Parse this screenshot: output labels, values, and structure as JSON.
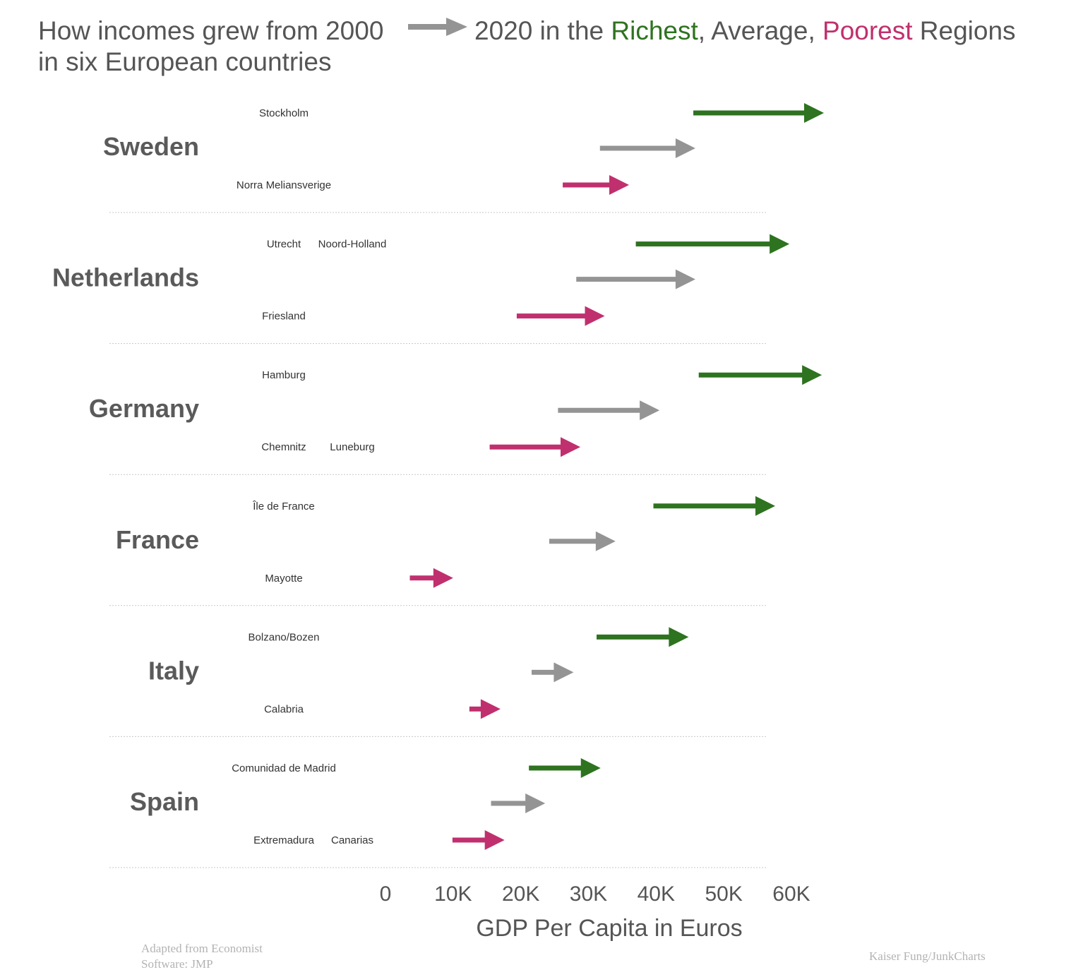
{
  "title": {
    "part1": "How incomes grew from 2000",
    "part2": "2020 in the ",
    "richest": "Richest",
    "sep": ", Average, ",
    "poorest": "Poorest",
    "part3": " Regions",
    "line2": "in six European countries"
  },
  "credits": {
    "source_line1": "Adapted from Economist",
    "source_line2": "Software: JMP",
    "author": "Kaiser Fung/JunkCharts"
  },
  "colors": {
    "richest": "#2e7320",
    "average": "#949494",
    "poorest": "#c0306e"
  },
  "chart_data": {
    "type": "arrow-range",
    "xlabel": "GDP Per Capita in Euros",
    "xlim": [
      0,
      60000
    ],
    "ticks": [
      {
        "value": 0,
        "label": "0"
      },
      {
        "value": 10000,
        "label": "10K"
      },
      {
        "value": 20000,
        "label": "20K"
      },
      {
        "value": 30000,
        "label": "30K"
      },
      {
        "value": 40000,
        "label": "40K"
      },
      {
        "value": 50000,
        "label": "50K"
      },
      {
        "value": 60000,
        "label": "60K"
      }
    ],
    "countries": [
      {
        "name": "Sweden",
        "richest": {
          "labels": [
            "Stockholm"
          ],
          "from": 45500,
          "to": 64800
        },
        "average": {
          "labels": [],
          "from": 31700,
          "to": 45800
        },
        "poorest": {
          "labels": [
            "Norra Meliansverige"
          ],
          "from": 26200,
          "to": 36000
        }
      },
      {
        "name": "Netherlands",
        "richest": {
          "labels": [
            "Utrecht",
            "Noord-Holland"
          ],
          "from": 37000,
          "to": 59700
        },
        "average": {
          "labels": [],
          "from": 28200,
          "to": 45800
        },
        "poorest": {
          "labels": [
            "Friesland"
          ],
          "from": 19400,
          "to": 32400
        }
      },
      {
        "name": "Germany",
        "richest": {
          "labels": [
            "Hamburg"
          ],
          "from": 46300,
          "to": 64500
        },
        "average": {
          "labels": [],
          "from": 25500,
          "to": 40500
        },
        "poorest": {
          "labels": [
            "Chemnitz",
            "Luneburg"
          ],
          "from": 15400,
          "to": 28800
        }
      },
      {
        "name": "France",
        "richest": {
          "labels": [
            "Île de France"
          ],
          "from": 39600,
          "to": 57600
        },
        "average": {
          "labels": [],
          "from": 24200,
          "to": 34000
        },
        "poorest": {
          "labels": [
            "Mayotte"
          ],
          "from": 3600,
          "to": 10000
        }
      },
      {
        "name": "Italy",
        "richest": {
          "labels": [
            "Bolzano/Bozen"
          ],
          "from": 31200,
          "to": 44800
        },
        "average": {
          "labels": [],
          "from": 21600,
          "to": 27800
        },
        "poorest": {
          "labels": [
            "Calabria"
          ],
          "from": 12400,
          "to": 17000
        }
      },
      {
        "name": "Spain",
        "richest": {
          "labels": [
            "Comunidad de Madrid"
          ],
          "from": 21200,
          "to": 31800
        },
        "average": {
          "labels": [],
          "from": 15600,
          "to": 23600
        },
        "poorest": {
          "labels": [
            "Extremadura",
            "Canarias"
          ],
          "from": 9900,
          "to": 17600
        }
      }
    ]
  }
}
